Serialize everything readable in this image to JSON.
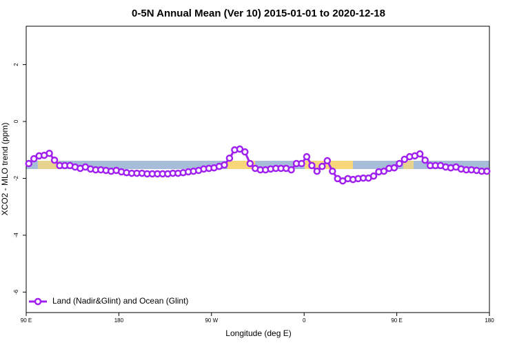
{
  "chart_data": {
    "type": "line",
    "title": "0-5N Annual Mean (Ver 10)   2015-01-01 to 2020-12-18",
    "x_label": "Longitude (deg E)",
    "y_label": "XCO2 - MLO trend (ppm)",
    "x": [
      92.5,
      97.5,
      102.5,
      107.5,
      112.5,
      117.5,
      122.5,
      127.5,
      132.5,
      137.5,
      142.5,
      147.5,
      152.5,
      157.5,
      162.5,
      167.5,
      172.5,
      177.5,
      182.5,
      187.5,
      192.5,
      197.5,
      202.5,
      207.5,
      212.5,
      217.5,
      222.5,
      227.5,
      232.5,
      237.5,
      242.5,
      247.5,
      252.5,
      257.5,
      262.5,
      267.5,
      272.5,
      277.5,
      282.5,
      287.5,
      292.5,
      297.5,
      302.5,
      307.5,
      312.5,
      317.5,
      322.5,
      327.5,
      332.5,
      337.5,
      342.5,
      347.5,
      352.5,
      357.5,
      362.5,
      367.5,
      372.5,
      377.5,
      382.5,
      387.5,
      392.5,
      397.5,
      402.5,
      407.5,
      412.5,
      417.5,
      422.5,
      427.5,
      432.5,
      437.5,
      442.5,
      447.5,
      452.5,
      457.5,
      462.5,
      467.5,
      472.5,
      477.5,
      482.5,
      487.5,
      492.5,
      497.5,
      502.5,
      507.5,
      512.5,
      517.5,
      522.5,
      527.5,
      532.5,
      537.5
    ],
    "series": [
      {
        "name": "Land (Nadir&Glint) and Ocean (Glint)",
        "color": "#a020f0",
        "values": [
          -1.48,
          -1.31,
          -1.21,
          -1.19,
          -1.12,
          -1.36,
          -1.55,
          -1.55,
          -1.55,
          -1.6,
          -1.65,
          -1.6,
          -1.67,
          -1.7,
          -1.7,
          -1.72,
          -1.75,
          -1.72,
          -1.77,
          -1.8,
          -1.82,
          -1.82,
          -1.82,
          -1.84,
          -1.84,
          -1.84,
          -1.84,
          -1.84,
          -1.82,
          -1.82,
          -1.8,
          -1.77,
          -1.75,
          -1.72,
          -1.67,
          -1.65,
          -1.63,
          -1.58,
          -1.53,
          -1.29,
          -1.0,
          -0.97,
          -1.07,
          -1.48,
          -1.65,
          -1.7,
          -1.7,
          -1.67,
          -1.65,
          -1.65,
          -1.65,
          -1.7,
          -1.48,
          -1.48,
          -1.24,
          -1.55,
          -1.75,
          -1.58,
          -1.38,
          -1.75,
          -2.01,
          -2.09,
          -2.01,
          -2.04,
          -2.01,
          -1.99,
          -1.99,
          -1.92,
          -1.77,
          -1.75,
          -1.65,
          -1.63,
          -1.48,
          -1.33,
          -1.24,
          -1.21,
          -1.14,
          -1.36,
          -1.55,
          -1.55,
          -1.55,
          -1.6,
          -1.63,
          -1.6,
          -1.67,
          -1.7,
          -1.7,
          -1.72,
          -1.75,
          -1.75
        ]
      }
    ],
    "xlim": [
      90,
      540
    ],
    "xticks": [
      {
        "value": 90,
        "label": "90 E"
      },
      {
        "value": 180,
        "label": "180"
      },
      {
        "value": 270,
        "label": "90 W"
      },
      {
        "value": 360,
        "label": "0"
      },
      {
        "value": 450,
        "label": "90 E"
      },
      {
        "value": 540,
        "label": "180"
      }
    ],
    "ylim": [
      -6.72,
      3.35
    ],
    "yticks": [
      -6,
      -4,
      -2,
      0,
      2
    ],
    "legend": "bottom-left"
  }
}
